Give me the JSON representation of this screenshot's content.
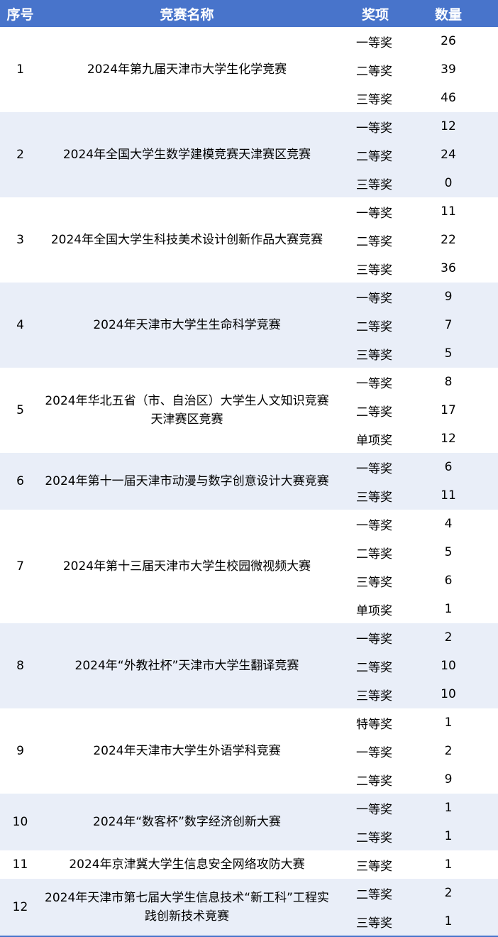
{
  "header": {
    "seq": "序号",
    "name": "竞赛名称",
    "award": "奖项",
    "count": "数量"
  },
  "colors": {
    "header_bg": "#4874CB",
    "band": "#E9EEF8"
  },
  "rows": [
    {
      "seq": "1",
      "name": "2024年第九届天津市大学生化学竞赛",
      "awards": [
        {
          "a": "一等奖",
          "n": "26"
        },
        {
          "a": "二等奖",
          "n": "39"
        },
        {
          "a": "三等奖",
          "n": "46"
        }
      ]
    },
    {
      "seq": "2",
      "name": "2024年全国大学生数学建模竞赛天津赛区竞赛",
      "awards": [
        {
          "a": "一等奖",
          "n": "12"
        },
        {
          "a": "二等奖",
          "n": "24"
        },
        {
          "a": "三等奖",
          "n": "0"
        }
      ]
    },
    {
      "seq": "3",
      "name": "2024年全国大学生科技美术设计创新作品大赛竞赛",
      "awards": [
        {
          "a": "一等奖",
          "n": "11"
        },
        {
          "a": "二等奖",
          "n": "22"
        },
        {
          "a": "三等奖",
          "n": "36"
        }
      ]
    },
    {
      "seq": "4",
      "name": "2024年天津市大学生生命科学竞赛",
      "awards": [
        {
          "a": "一等奖",
          "n": "9"
        },
        {
          "a": "二等奖",
          "n": "7"
        },
        {
          "a": "三等奖",
          "n": "5"
        }
      ]
    },
    {
      "seq": "5",
      "name": "2024年华北五省（市、自治区）大学生人文知识竞赛天津赛区竞赛",
      "awards": [
        {
          "a": "一等奖",
          "n": "8"
        },
        {
          "a": "二等奖",
          "n": "17"
        },
        {
          "a": "单项奖",
          "n": "12"
        }
      ]
    },
    {
      "seq": "6",
      "name": "2024年第十一届天津市动漫与数字创意设计大赛竞赛",
      "awards": [
        {
          "a": "一等奖",
          "n": "6"
        },
        {
          "a": "三等奖",
          "n": "11"
        }
      ]
    },
    {
      "seq": "7",
      "name": "2024年第十三届天津市大学生校园微视频大赛",
      "awards": [
        {
          "a": "一等奖",
          "n": "4"
        },
        {
          "a": "二等奖",
          "n": "5"
        },
        {
          "a": "三等奖",
          "n": "6"
        },
        {
          "a": "单项奖",
          "n": "1"
        }
      ]
    },
    {
      "seq": "8",
      "name": "2024年“外教社杯”天津市大学生翻译竞赛",
      "awards": [
        {
          "a": "一等奖",
          "n": "2"
        },
        {
          "a": "二等奖",
          "n": "10"
        },
        {
          "a": "三等奖",
          "n": "10"
        }
      ]
    },
    {
      "seq": "9",
      "name": "2024年天津市大学生外语学科竞赛",
      "awards": [
        {
          "a": "特等奖",
          "n": "1"
        },
        {
          "a": "一等奖",
          "n": "2"
        },
        {
          "a": "二等奖",
          "n": "9"
        }
      ]
    },
    {
      "seq": "10",
      "name": "2024年“数客杯”数字经济创新大赛",
      "awards": [
        {
          "a": "一等奖",
          "n": "1"
        },
        {
          "a": "二等奖",
          "n": "1"
        }
      ]
    },
    {
      "seq": "11",
      "name": "2024年京津冀大学生信息安全网络攻防大赛",
      "awards": [
        {
          "a": "三等奖",
          "n": "1"
        }
      ]
    },
    {
      "seq": "12",
      "name": "2024年天津市第七届大学生信息技术“新工科”工程实践创新技术竞赛",
      "awards": [
        {
          "a": "二等奖",
          "n": "2"
        },
        {
          "a": "三等奖",
          "n": "1"
        }
      ]
    }
  ]
}
